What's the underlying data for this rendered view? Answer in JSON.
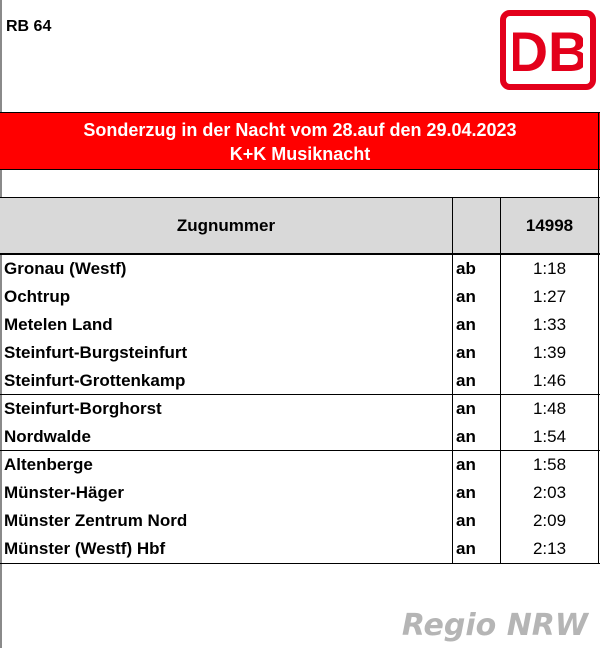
{
  "header": {
    "line": "RB 64",
    "logo": {
      "text": "DB",
      "color": "#e3001b"
    }
  },
  "banner": {
    "line1": "Sonderzug in der Nacht vom 28.auf den 29.04.2023",
    "line2": "K+K Musiknacht",
    "bg_color": "#ff0000"
  },
  "table": {
    "header": {
      "label": "Zugnummer",
      "train_number": "14998"
    },
    "stops": [
      {
        "station": "Gronau (Westf)",
        "type": "ab",
        "time": "1:18"
      },
      {
        "station": "Ochtrup",
        "type": "an",
        "time": "1:27"
      },
      {
        "station": "Metelen Land",
        "type": "an",
        "time": "1:33"
      },
      {
        "station": "Steinfurt-Burgsteinfurt",
        "type": "an",
        "time": "1:39"
      },
      {
        "station": "Steinfurt-Grottenkamp",
        "type": "an",
        "time": "1:46"
      },
      {
        "station": "Steinfurt-Borghorst",
        "type": "an",
        "time": "1:48"
      },
      {
        "station": "Nordwalde",
        "type": "an",
        "time": "1:54"
      },
      {
        "station": "Altenberge",
        "type": "an",
        "time": "1:58"
      },
      {
        "station": "Münster-Häger",
        "type": "an",
        "time": "2:03"
      },
      {
        "station": "Münster Zentrum Nord",
        "type": "an",
        "time": "2:09"
      },
      {
        "station": "Münster (Westf) Hbf",
        "type": "an",
        "time": "2:13"
      }
    ]
  },
  "watermark": "Regio NRW"
}
